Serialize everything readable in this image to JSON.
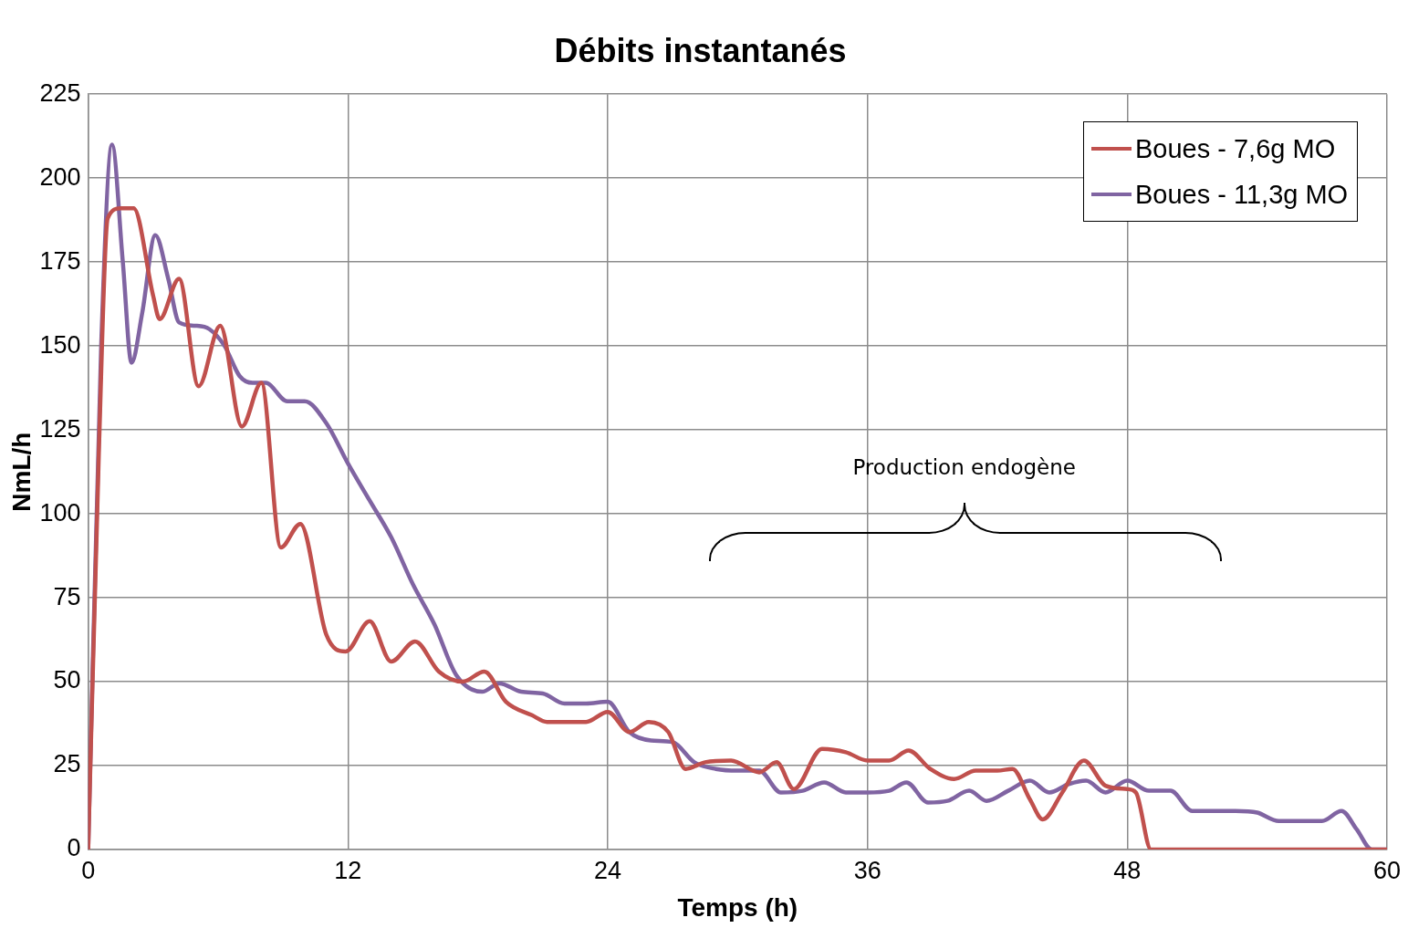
{
  "chart_data": {
    "type": "line",
    "title": "Débits instantanés",
    "xlabel": "Temps (h)",
    "ylabel": "NmL/h",
    "xlim": [
      0,
      60
    ],
    "xticks": [
      0,
      12,
      24,
      36,
      48,
      60
    ],
    "ylim": [
      0,
      225
    ],
    "yticks": [
      0,
      25,
      50,
      75,
      100,
      125,
      150,
      175,
      200,
      225
    ],
    "grid": true,
    "legend": "top right",
    "marker": "none",
    "line_style": "solid",
    "annotations": [
      "Production endogène"
    ],
    "series": [
      {
        "name": "Boues - 7,6g MO",
        "color": "#c0504d",
        "x": [
          0,
          0.5,
          0.9,
          1.5,
          2.1,
          3.0,
          3.3,
          4.2,
          5.1,
          6.1,
          7.1,
          8.0,
          8.9,
          9.8,
          11.0,
          11.9,
          13.0,
          14.0,
          15.1,
          16.2,
          17.3,
          18.3,
          19.3,
          20.5,
          21.2,
          23.0,
          24.0,
          25.0,
          25.9,
          26.8,
          27.6,
          28.5,
          29.7,
          31.0,
          31.8,
          32.6,
          33.9,
          35.0,
          36.0,
          37.0,
          37.9,
          38.9,
          40.0,
          41.0,
          42.0,
          42.7,
          43.5,
          44.1,
          45.0,
          46.0,
          47.0,
          48.0,
          48.4,
          49.1,
          50.5,
          60
        ],
        "values": [
          0,
          120,
          188,
          191,
          191,
          165,
          158,
          170,
          138,
          156,
          126,
          139,
          90,
          97,
          64,
          59,
          68,
          56,
          62,
          53,
          50,
          53,
          44,
          40,
          38,
          38,
          41,
          35,
          38,
          35,
          24,
          26,
          26.5,
          23,
          26,
          18,
          30,
          29,
          26.5,
          26.5,
          29.5,
          24,
          21,
          23.5,
          23.5,
          24,
          15,
          9,
          17,
          26.5,
          19,
          18,
          17,
          0,
          0,
          0
        ]
      },
      {
        "name": "Boues - 11,3g MO",
        "color": "#8064a2",
        "x": [
          0,
          0.6,
          1.1,
          1.6,
          2.0,
          2.5,
          3.1,
          3.7,
          4.2,
          5.0,
          5.6,
          6.3,
          7.0,
          7.6,
          8.2,
          9.2,
          10.0,
          11.0,
          12.0,
          13.0,
          14.0,
          15.0,
          16.0,
          17.0,
          18.2,
          19.0,
          20.0,
          21.0,
          22.0,
          23.0,
          24.0,
          25.0,
          26.0,
          27.0,
          28.0,
          29.0,
          30.0,
          31.0,
          32.0,
          33.0,
          34.0,
          35.0,
          36.0,
          37.0,
          37.8,
          38.8,
          39.7,
          40.7,
          41.5,
          42.5,
          43.5,
          44.4,
          45.3,
          46.1,
          47.0,
          48.0,
          49.0,
          50.0,
          51.0,
          52.0,
          53.0,
          54.0,
          55.0,
          56.0,
          57.0,
          57.9,
          58.6,
          59.3,
          60
        ],
        "values": [
          0,
          150,
          210,
          175,
          145,
          160,
          183,
          170,
          157,
          156,
          155,
          150,
          141,
          139,
          139,
          133.5,
          133.5,
          127,
          115,
          104,
          93,
          79,
          67,
          52,
          47,
          49.5,
          47,
          46.5,
          43.5,
          43.5,
          44,
          35,
          32.5,
          32,
          26,
          24,
          23.5,
          23.5,
          17,
          17.5,
          20,
          17,
          17,
          17.5,
          20,
          14,
          14.5,
          17.5,
          14.5,
          17.5,
          20.5,
          17,
          19.5,
          20.5,
          17,
          20.5,
          17.5,
          17.5,
          11.5,
          11.5,
          11.5,
          11,
          8.5,
          8.5,
          8.5,
          11.5,
          6,
          0,
          0
        ]
      }
    ]
  }
}
